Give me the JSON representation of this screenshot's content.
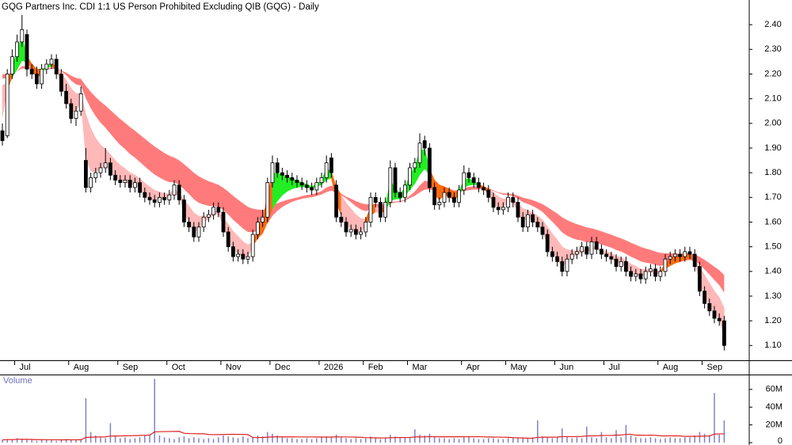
{
  "chart_data": {
    "type": "candlestick",
    "title": "GQG Partners Inc. CDI 1:1 US Person Prohibited Excluding QIB (GQG) - Daily",
    "categories": [
      null,
      null,
      null,
      "Jul",
      null,
      null,
      null,
      null,
      null,
      null,
      null,
      null,
      null,
      null,
      "Aug",
      null,
      null,
      null,
      null,
      null,
      null,
      null,
      null,
      null,
      "Sep",
      null,
      null,
      null,
      null,
      null,
      null,
      null,
      null,
      null,
      "Oct",
      null,
      null,
      null,
      null,
      null,
      null,
      null,
      null,
      null,
      null,
      "Nov",
      null,
      null,
      null,
      null,
      null,
      null,
      null,
      null,
      null,
      "Dec",
      null,
      null,
      null,
      null,
      null,
      null,
      null,
      null,
      null,
      "2026",
      null,
      null,
      null,
      null,
      null,
      null,
      null,
      null,
      "Feb",
      null,
      null,
      null,
      null,
      null,
      null,
      null,
      null,
      "Mar",
      null,
      null,
      null,
      null,
      null,
      null,
      null,
      null,
      null,
      null,
      "Apr",
      null,
      null,
      null,
      null,
      null,
      null,
      null,
      null,
      "May",
      null,
      null,
      null,
      null,
      null,
      null,
      null,
      null,
      null,
      "Jun",
      null,
      null,
      null,
      null,
      null,
      null,
      null,
      null,
      null,
      "Jul",
      null,
      null,
      null,
      null,
      null,
      null,
      null,
      null,
      null,
      null,
      "Aug",
      null,
      null,
      null,
      null,
      null,
      null,
      null,
      null,
      "Sep",
      null,
      null,
      null,
      null
    ],
    "open": [
      1.97,
      1.95,
      2.2,
      2.27,
      2.33,
      2.36,
      2.22,
      2.2,
      2.16,
      2.22,
      2.24,
      2.26,
      2.2,
      2.13,
      2.08,
      2.02,
      2.05,
      1.85,
      1.74,
      1.78,
      1.8,
      1.82,
      1.84,
      1.79,
      1.77,
      1.76,
      1.77,
      1.74,
      1.76,
      1.72,
      1.7,
      1.69,
      1.68,
      1.7,
      1.69,
      1.71,
      1.75,
      1.69,
      1.6,
      1.58,
      1.54,
      1.58,
      1.62,
      1.63,
      1.66,
      1.64,
      1.56,
      1.5,
      1.46,
      1.47,
      1.45,
      1.46,
      1.55,
      1.6,
      1.62,
      1.76,
      1.84,
      1.8,
      1.79,
      1.78,
      1.77,
      1.76,
      1.75,
      1.74,
      1.73,
      1.76,
      1.78,
      1.86,
      1.75,
      1.62,
      1.6,
      1.56,
      1.57,
      1.55,
      1.56,
      1.6,
      1.7,
      1.68,
      1.62,
      1.68,
      1.82,
      1.72,
      1.7,
      1.75,
      1.82,
      1.84,
      1.93,
      1.9,
      1.74,
      1.67,
      1.68,
      1.72,
      1.7,
      1.68,
      1.73,
      1.8,
      1.78,
      1.76,
      1.74,
      1.73,
      1.7,
      1.66,
      1.65,
      1.66,
      1.7,
      1.68,
      1.62,
      1.58,
      1.63,
      1.6,
      1.58,
      1.55,
      1.48,
      1.46,
      1.44,
      1.4,
      1.45,
      1.47,
      1.48,
      1.5,
      1.47,
      1.52,
      1.49,
      1.47,
      1.46,
      1.45,
      1.42,
      1.44,
      1.4,
      1.38,
      1.39,
      1.37,
      1.4,
      1.41,
      1.38,
      1.4,
      1.45,
      1.46,
      1.47,
      1.46,
      1.48,
      1.47,
      1.42,
      1.32,
      1.27,
      1.24,
      1.21,
      1.2
    ],
    "high": [
      2.0,
      2.22,
      2.3,
      2.36,
      2.44,
      2.38,
      2.24,
      2.23,
      2.24,
      2.26,
      2.28,
      2.28,
      2.22,
      2.16,
      2.1,
      2.07,
      2.15,
      1.9,
      1.8,
      1.82,
      1.84,
      1.9,
      1.86,
      1.81,
      1.79,
      1.79,
      1.79,
      1.78,
      1.78,
      1.74,
      1.72,
      1.71,
      1.72,
      1.72,
      1.73,
      1.77,
      1.77,
      1.71,
      1.62,
      1.6,
      1.6,
      1.64,
      1.65,
      1.68,
      1.68,
      1.66,
      1.58,
      1.52,
      1.49,
      1.49,
      1.48,
      1.57,
      1.62,
      1.65,
      1.78,
      1.87,
      1.86,
      1.82,
      1.81,
      1.8,
      1.79,
      1.78,
      1.77,
      1.76,
      1.78,
      1.8,
      1.87,
      1.88,
      1.77,
      1.64,
      1.62,
      1.59,
      1.59,
      1.58,
      1.62,
      1.72,
      1.72,
      1.7,
      1.7,
      1.85,
      1.84,
      1.74,
      1.77,
      1.84,
      1.86,
      1.96,
      1.95,
      1.92,
      1.76,
      1.7,
      1.74,
      1.74,
      1.72,
      1.75,
      1.83,
      1.82,
      1.8,
      1.78,
      1.76,
      1.75,
      1.72,
      1.68,
      1.68,
      1.72,
      1.72,
      1.7,
      1.64,
      1.65,
      1.65,
      1.62,
      1.6,
      1.57,
      1.5,
      1.48,
      1.46,
      1.47,
      1.49,
      1.5,
      1.52,
      1.52,
      1.54,
      1.54,
      1.51,
      1.49,
      1.48,
      1.47,
      1.46,
      1.46,
      1.42,
      1.41,
      1.41,
      1.42,
      1.43,
      1.43,
      1.42,
      1.47,
      1.48,
      1.49,
      1.49,
      1.5,
      1.5,
      1.49,
      1.44,
      1.34,
      1.29,
      1.26,
      1.23,
      1.22
    ],
    "low": [
      1.91,
      1.94,
      2.18,
      2.25,
      2.31,
      2.19,
      2.18,
      2.14,
      2.14,
      2.2,
      2.22,
      2.18,
      2.11,
      2.06,
      2.0,
      1.99,
      2.03,
      1.72,
      1.72,
      1.76,
      1.78,
      1.8,
      1.77,
      1.75,
      1.74,
      1.74,
      1.72,
      1.72,
      1.7,
      1.68,
      1.67,
      1.66,
      1.66,
      1.67,
      1.67,
      1.69,
      1.67,
      1.58,
      1.56,
      1.52,
      1.52,
      1.56,
      1.6,
      1.61,
      1.62,
      1.54,
      1.48,
      1.44,
      1.44,
      1.43,
      1.43,
      1.44,
      1.53,
      1.58,
      1.6,
      1.74,
      1.78,
      1.77,
      1.76,
      1.75,
      1.74,
      1.73,
      1.72,
      1.71,
      1.71,
      1.74,
      1.76,
      1.78,
      1.6,
      1.58,
      1.54,
      1.54,
      1.53,
      1.53,
      1.54,
      1.58,
      1.66,
      1.6,
      1.6,
      1.66,
      1.7,
      1.68,
      1.68,
      1.73,
      1.8,
      1.82,
      1.87,
      1.72,
      1.65,
      1.65,
      1.66,
      1.68,
      1.66,
      1.66,
      1.71,
      1.76,
      1.74,
      1.72,
      1.71,
      1.68,
      1.64,
      1.63,
      1.63,
      1.64,
      1.66,
      1.6,
      1.56,
      1.56,
      1.58,
      1.56,
      1.53,
      1.46,
      1.44,
      1.42,
      1.38,
      1.38,
      1.43,
      1.45,
      1.46,
      1.45,
      1.45,
      1.47,
      1.45,
      1.44,
      1.43,
      1.4,
      1.4,
      1.38,
      1.36,
      1.36,
      1.35,
      1.35,
      1.38,
      1.36,
      1.36,
      1.38,
      1.43,
      1.44,
      1.44,
      1.44,
      1.45,
      1.4,
      1.3,
      1.25,
      1.22,
      1.19,
      1.18,
      1.08
    ],
    "close": [
      1.93,
      2.2,
      2.27,
      2.33,
      2.38,
      2.22,
      2.2,
      2.16,
      2.22,
      2.24,
      2.26,
      2.2,
      2.13,
      2.08,
      2.02,
      2.05,
      2.12,
      1.74,
      1.78,
      1.8,
      1.82,
      1.84,
      1.79,
      1.77,
      1.76,
      1.77,
      1.74,
      1.76,
      1.72,
      1.7,
      1.69,
      1.68,
      1.7,
      1.69,
      1.71,
      1.75,
      1.69,
      1.6,
      1.58,
      1.54,
      1.58,
      1.62,
      1.63,
      1.66,
      1.64,
      1.56,
      1.5,
      1.46,
      1.47,
      1.45,
      1.46,
      1.55,
      1.6,
      1.62,
      1.76,
      1.84,
      1.8,
      1.79,
      1.78,
      1.77,
      1.76,
      1.75,
      1.74,
      1.73,
      1.76,
      1.78,
      1.84,
      1.8,
      1.62,
      1.6,
      1.56,
      1.57,
      1.55,
      1.56,
      1.6,
      1.7,
      1.68,
      1.62,
      1.68,
      1.82,
      1.72,
      1.7,
      1.75,
      1.82,
      1.84,
      1.92,
      1.9,
      1.74,
      1.67,
      1.68,
      1.72,
      1.7,
      1.68,
      1.73,
      1.8,
      1.78,
      1.76,
      1.74,
      1.73,
      1.7,
      1.66,
      1.65,
      1.66,
      1.7,
      1.68,
      1.62,
      1.58,
      1.63,
      1.6,
      1.58,
      1.55,
      1.48,
      1.46,
      1.44,
      1.4,
      1.45,
      1.47,
      1.48,
      1.5,
      1.47,
      1.52,
      1.49,
      1.47,
      1.46,
      1.45,
      1.42,
      1.44,
      1.4,
      1.38,
      1.39,
      1.37,
      1.4,
      1.41,
      1.38,
      1.4,
      1.45,
      1.46,
      1.47,
      1.46,
      1.48,
      1.47,
      1.42,
      1.32,
      1.27,
      1.24,
      1.21,
      1.2,
      1.1
    ],
    "ylim": [
      1.04,
      2.5
    ],
    "yticks": [
      {
        "value": 1.1,
        "label": "1.10"
      },
      {
        "value": 1.2,
        "label": "1.20"
      },
      {
        "value": 1.3,
        "label": "1.30"
      },
      {
        "value": 1.4,
        "label": "1.40"
      },
      {
        "value": 1.5,
        "label": "1.50"
      },
      {
        "value": 1.6,
        "label": "1.60"
      },
      {
        "value": 1.7,
        "label": "1.70"
      },
      {
        "value": 1.8,
        "label": "1.80"
      },
      {
        "value": 1.9,
        "label": "1.90"
      },
      {
        "value": 2.0,
        "label": "2.00"
      },
      {
        "value": 2.1,
        "label": "2.10"
      },
      {
        "value": 2.2,
        "label": "2.20"
      },
      {
        "value": 2.3,
        "label": "2.30"
      },
      {
        "value": 2.4,
        "label": "2.40"
      }
    ],
    "band_colors": {
      "long": "#ff7b7b",
      "short_down": "#ffb8b8",
      "short_up": "#22ee22",
      "cross": "#ff6a10"
    },
    "volume": {
      "title": "Volume",
      "color": "#8080c8",
      "average_color": "#e02020",
      "values": [
        3,
        4,
        3,
        5,
        4,
        3,
        3,
        2,
        3,
        3,
        3,
        2,
        3,
        4,
        3,
        3,
        4,
        50,
        12,
        8,
        6,
        5,
        22,
        7,
        5,
        6,
        4,
        5,
        6,
        8,
        9,
        72,
        8,
        6,
        5,
        4,
        6,
        7,
        5,
        6,
        5,
        4,
        5,
        4,
        6,
        8,
        7,
        6,
        5,
        7,
        5,
        6,
        8,
        7,
        12,
        10,
        8,
        6,
        5,
        5,
        4,
        4,
        5,
        4,
        5,
        6,
        7,
        6,
        9,
        6,
        5,
        4,
        5,
        4,
        5,
        7,
        5,
        4,
        6,
        9,
        7,
        5,
        6,
        6,
        15,
        9,
        8,
        10,
        7,
        5,
        5,
        4,
        5,
        4,
        6,
        7,
        5,
        4,
        4,
        5,
        5,
        4,
        4,
        5,
        5,
        6,
        5,
        5,
        6,
        25,
        7,
        6,
        5,
        6,
        16,
        7,
        5,
        6,
        5,
        18,
        6,
        5,
        12,
        6,
        5,
        14,
        6,
        20,
        8,
        6,
        5,
        5,
        6,
        5,
        4,
        5,
        6,
        5,
        5,
        6,
        6,
        8,
        12,
        10,
        8,
        56,
        9,
        25
      ],
      "ylim": [
        0,
        75
      ],
      "yticks": [
        0,
        {
          "value": 20,
          "label": "20M"
        },
        {
          "value": 40,
          "label": "40M"
        },
        {
          "value": 60,
          "label": "60M"
        }
      ]
    }
  }
}
